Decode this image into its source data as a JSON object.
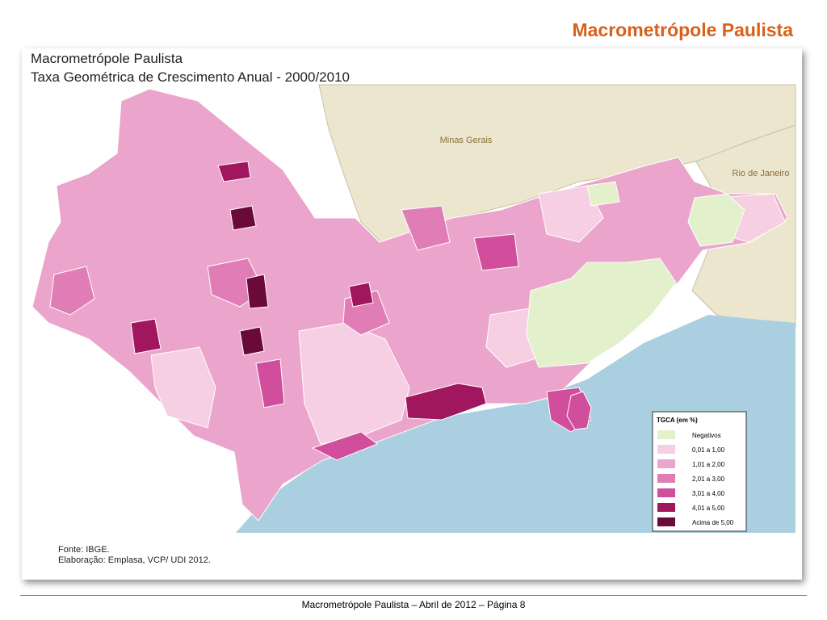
{
  "header": {
    "title": "Macrometrópole Paulista"
  },
  "map": {
    "title": "Macrometrópole Paulista",
    "subtitle": "Taxa Geométrica de Crescimento Anual - 2000/2010",
    "regions": [
      "Minas Gerais",
      "Rio de Janeiro"
    ],
    "legend": {
      "title": "TGCA (em %)",
      "items": [
        {
          "label": "Negativos",
          "color": "#e2f0cb"
        },
        {
          "label": "0,01 a 1,00",
          "color": "#f6cfe3"
        },
        {
          "label": "1,01 a 2,00",
          "color": "#eba5cc"
        },
        {
          "label": "2,01 a 3,00",
          "color": "#e07db6"
        },
        {
          "label": "3,01 a 4,00",
          "color": "#d04e9b"
        },
        {
          "label": "4,01 a 5,00",
          "color": "#a0175f"
        },
        {
          "label": "Acima de 5,00",
          "color": "#6a0a3b"
        }
      ]
    },
    "source": "Fonte: IBGE.",
    "credit": "Elaboração: Emplasa, VCP/ UDI 2012."
  },
  "footer": {
    "text": "Macrometrópole Paulista – Abril de 2012 –  Página 8"
  }
}
